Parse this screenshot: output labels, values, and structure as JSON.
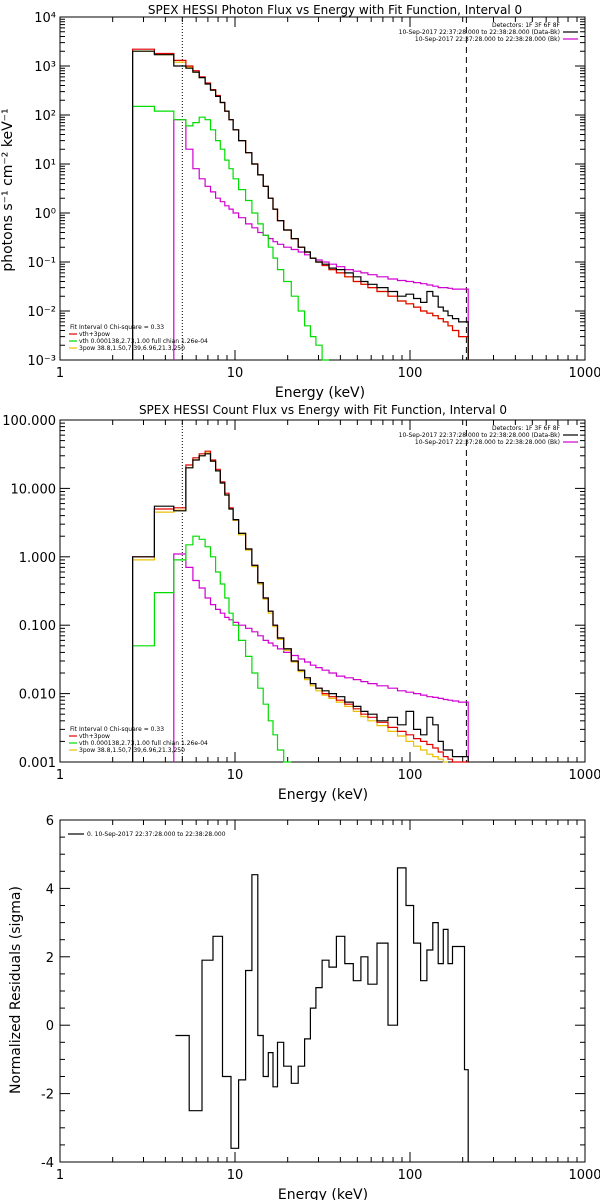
{
  "figure": {
    "panels": [
      {
        "id": "photon",
        "title": "SPEX HESSI Photon Flux vs Energy with Fit Function, Interval 0",
        "xlabel": "Energy (keV)",
        "ylabel": "photons s⁻¹ cm⁻² keV⁻¹",
        "y_ticklabels": [
          "10⁻³",
          "10⁻²",
          "10⁻¹",
          "10⁰",
          "10¹",
          "10²",
          "10³",
          "10⁴"
        ],
        "x_ticklabels": [
          "1",
          "10",
          "100",
          "1000"
        ],
        "legend_topright": [
          "Detectors: 1F 3F 6F 8F",
          "10-Sep-2017 22:37:28.000 to 22:38:28.000 (Data-Bk)",
          "10-Sep-2017 22:37:28.000 to 22:38:28.000 (Bk)"
        ],
        "legend_bottomleft": [
          "Fit Interval 0   Chi-square = 0.33",
          "vth+3pow",
          "vth 0.000138,2.73,1.00  full chian 1.26e-04",
          "3pow 38.8,1.50,7.39,6.96,21.3,250"
        ]
      },
      {
        "id": "count",
        "title": "SPEX HESSI Count Flux vs Energy with Fit Function, Interval 0",
        "xlabel": "Energy (keV)",
        "ylabel": "",
        "y_ticklabels": [
          "0.001",
          "0.010",
          "0.100",
          "1.000",
          "10.000",
          "100.000"
        ],
        "x_ticklabels": [
          "1",
          "10",
          "100",
          "1000"
        ],
        "legend_topright": [
          "Detectors: 1F 3F 6F 8F",
          "10-Sep-2017 22:37:28.000 to 22:38:28.000 (Data-Bk)",
          "10-Sep-2017 22:37:28.000 to 22:38:28.000 (Bk)"
        ],
        "legend_bottomleft": [
          "Fit Interval 0   Chi-square = 0.33",
          "vth+3pow",
          "vth 0.000138,2.73,1.00  full chian 1.26e-04",
          "3pow 38.8,1.50,7.39,6.96,21.3,250"
        ]
      },
      {
        "id": "residuals",
        "title": "",
        "xlabel": "Energy (keV)",
        "ylabel": "Normalized Residuals (sigma)",
        "y_ticklabels": [
          "-4",
          "-2",
          "0",
          "2",
          "4",
          "6"
        ],
        "x_ticklabels": [
          "1",
          "10",
          "100",
          "1000"
        ],
        "legend_topleft": [
          "0. 10-Sep-2017 22:37:28.000 to 22:38:28.000"
        ]
      }
    ]
  },
  "colors": {
    "data": "#000000",
    "total_fit": "#e00000",
    "thermal": "#00dd00",
    "power_law": "#e8c000",
    "background": "#d000d0",
    "axes": "#000000"
  },
  "chart_data": [
    {
      "type": "line",
      "title": "SPEX HESSI Photon Flux vs Energy with Fit Function, Interval 0",
      "xlabel": "Energy (keV)",
      "ylabel": "photons s⁻¹ cm⁻² keV⁻¹",
      "xscale": "log",
      "yscale": "log",
      "xlim": [
        1,
        1000
      ],
      "ylim": [
        0.001,
        10000
      ],
      "vlines": [
        {
          "x": 5,
          "style": "dotted"
        },
        {
          "x": 210,
          "style": "dashed"
        }
      ],
      "x": [
        3,
        4,
        5,
        5.5,
        6,
        6.5,
        7,
        7.5,
        8,
        8.5,
        9,
        9.5,
        10,
        11,
        12,
        13,
        14,
        15,
        16,
        17,
        18,
        20,
        22,
        24,
        26,
        28,
        30,
        33,
        36,
        40,
        45,
        50,
        55,
        60,
        70,
        80,
        90,
        100,
        110,
        120,
        130,
        140,
        150,
        160,
        170,
        180,
        200,
        210
      ],
      "series": [
        {
          "name": "data",
          "values": [
            2000,
            1700,
            1000,
            900,
            750,
            580,
            430,
            320,
            240,
            180,
            120,
            80,
            50,
            30,
            17,
            10,
            6,
            3.5,
            2,
            1.2,
            0.7,
            0.45,
            0.3,
            0.2,
            0.16,
            0.12,
            0.1,
            0.09,
            0.075,
            0.07,
            0.06,
            0.05,
            0.04,
            0.035,
            0.03,
            0.025,
            0.02,
            0.022,
            0.018,
            0.015,
            0.025,
            0.02,
            0.012,
            0.01,
            0.008,
            0.007,
            0.006,
            0.006
          ]
        },
        {
          "name": "vth+3pow",
          "values": [
            2200,
            1800,
            1300,
            1000,
            800,
            600,
            450,
            330,
            250,
            180,
            120,
            80,
            50,
            30,
            17,
            10,
            6,
            3.5,
            2,
            1.2,
            0.7,
            0.45,
            0.3,
            0.2,
            0.16,
            0.12,
            0.1,
            0.085,
            0.07,
            0.06,
            0.05,
            0.04,
            0.035,
            0.03,
            0.025,
            0.02,
            0.016,
            0.014,
            0.012,
            0.01,
            0.009,
            0.008,
            0.007,
            0.006,
            0.005,
            0.004,
            0.003,
            0.003
          ]
        },
        {
          "name": "vth 0.000138,2.73,1.00  full chian 1.26e-04",
          "values": [
            150,
            120,
            80,
            60,
            70,
            90,
            80,
            50,
            30,
            20,
            12,
            8,
            5,
            3,
            1.8,
            1,
            0.6,
            0.35,
            0.2,
            0.12,
            0.07,
            0.04,
            0.02,
            0.01,
            0.005,
            0.003,
            0.002,
            0.001,
            null,
            null,
            null,
            null,
            null,
            null,
            null,
            null,
            null,
            null,
            null,
            null,
            null,
            null,
            null,
            null,
            null,
            null,
            null,
            null
          ]
        },
        {
          "name": "3pow 38.8,1.50,7.39,6.96,21.3,250",
          "values": [
            2000,
            1700,
            1200,
            950,
            750,
            580,
            430,
            320,
            240,
            180,
            120,
            80,
            50,
            30,
            17,
            10,
            6,
            3.5,
            2,
            1.2,
            0.7,
            0.45,
            0.3,
            0.2,
            0.16,
            0.12,
            0.1,
            0.085,
            0.07,
            0.06,
            0.05,
            0.04,
            0.035,
            0.03,
            0.025,
            0.02,
            0.016,
            0.014,
            0.012,
            0.01,
            0.009,
            0.008,
            0.007,
            0.006,
            0.005,
            0.004,
            0.003,
            0.003
          ]
        },
        {
          "name": "background",
          "values": [
            null,
            null,
            80,
            20,
            8,
            5,
            3.5,
            2.7,
            2,
            1.7,
            1.4,
            1.2,
            1,
            0.8,
            0.6,
            0.5,
            0.4,
            0.35,
            0.3,
            0.26,
            0.23,
            0.2,
            0.18,
            0.16,
            0.14,
            0.12,
            0.11,
            0.1,
            0.09,
            0.08,
            0.07,
            0.065,
            0.06,
            0.055,
            0.05,
            0.045,
            0.042,
            0.04,
            0.038,
            0.036,
            0.034,
            0.032,
            0.03,
            0.03,
            0.029,
            0.028,
            0.028,
            0.028
          ]
        }
      ],
      "legend": "top-right"
    },
    {
      "type": "line",
      "title": "SPEX HESSI Count Flux vs Energy with Fit Function, Interval 0",
      "xlabel": "Energy (keV)",
      "ylabel": "",
      "xscale": "log",
      "yscale": "log",
      "xlim": [
        1,
        1000
      ],
      "ylim": [
        0.001,
        100
      ],
      "vlines": [
        {
          "x": 5,
          "style": "dotted"
        },
        {
          "x": 210,
          "style": "dashed"
        }
      ],
      "x": [
        3,
        4,
        5,
        5.5,
        6,
        6.5,
        7,
        7.5,
        8,
        8.5,
        9,
        9.5,
        10,
        11,
        12,
        13,
        14,
        15,
        16,
        17,
        18,
        20,
        22,
        24,
        26,
        28,
        30,
        33,
        36,
        40,
        45,
        50,
        55,
        60,
        70,
        80,
        90,
        100,
        110,
        120,
        130,
        140,
        150,
        160,
        170,
        180,
        200,
        210
      ],
      "series": [
        {
          "name": "data",
          "values": [
            1,
            5.5,
            4.7,
            20,
            26,
            30,
            32,
            25,
            18,
            12,
            8,
            5,
            3.5,
            2.2,
            1.3,
            0.75,
            0.42,
            0.25,
            0.16,
            0.1,
            0.065,
            0.045,
            0.03,
            0.022,
            0.017,
            0.014,
            0.012,
            0.011,
            0.01,
            0.009,
            0.0075,
            0.0065,
            0.0055,
            0.005,
            0.004,
            0.0045,
            0.0035,
            0.0055,
            0.003,
            0.0025,
            0.0045,
            0.0035,
            0.002,
            0.0015,
            0.0015,
            0.0012,
            0.0012,
            0.0012
          ]
        },
        {
          "name": "vth+3pow",
          "values": [
            1,
            5,
            5.2,
            22,
            28,
            32,
            35,
            26,
            19,
            12.5,
            8.5,
            5.2,
            3.5,
            2.2,
            1.3,
            0.75,
            0.42,
            0.25,
            0.16,
            0.1,
            0.065,
            0.045,
            0.03,
            0.022,
            0.017,
            0.014,
            0.012,
            0.01,
            0.009,
            0.008,
            0.007,
            0.006,
            0.005,
            0.0045,
            0.0038,
            0.0032,
            0.0028,
            0.0025,
            0.0022,
            0.002,
            0.0018,
            0.0016,
            0.0014,
            0.0012,
            0.0011,
            0.001,
            0.001,
            0.001
          ]
        },
        {
          "name": "vth 0.000138,2.73,1.00  full chian 1.26e-04",
          "values": [
            0.05,
            0.3,
            0.9,
            1.5,
            2,
            1.8,
            1.4,
            1,
            0.6,
            0.4,
            0.25,
            0.15,
            0.1,
            0.06,
            0.035,
            0.02,
            0.012,
            0.007,
            0.004,
            0.0025,
            0.0015,
            0.001,
            null,
            null,
            null,
            null,
            null,
            null,
            null,
            null,
            null,
            null,
            null,
            null,
            null,
            null,
            null,
            null,
            null,
            null,
            null,
            null,
            null,
            null,
            null,
            null,
            null,
            null
          ]
        },
        {
          "name": "3pow 38.8,1.50,7.39,6.96,21.3,250",
          "values": [
            0.9,
            4.5,
            4.8,
            20,
            26,
            30,
            33,
            25,
            18,
            12,
            8,
            5,
            3.4,
            2.1,
            1.25,
            0.72,
            0.4,
            0.24,
            0.15,
            0.095,
            0.062,
            0.043,
            0.029,
            0.021,
            0.016,
            0.013,
            0.011,
            0.0095,
            0.0085,
            0.0075,
            0.0065,
            0.0055,
            0.0046,
            0.004,
            0.0034,
            0.0028,
            0.0024,
            0.002,
            0.0017,
            0.0015,
            0.0013,
            0.0012,
            0.0011,
            0.001,
            null,
            null,
            null,
            null
          ]
        },
        {
          "name": "background",
          "values": [
            null,
            null,
            1.1,
            0.7,
            0.45,
            0.35,
            0.25,
            0.2,
            0.17,
            0.15,
            0.13,
            0.12,
            0.11,
            0.1,
            0.09,
            0.08,
            0.07,
            0.06,
            0.055,
            0.05,
            0.045,
            0.04,
            0.036,
            0.032,
            0.029,
            0.026,
            0.024,
            0.022,
            0.02,
            0.018,
            0.017,
            0.016,
            0.015,
            0.014,
            0.013,
            0.012,
            0.011,
            0.0105,
            0.01,
            0.0095,
            0.009,
            0.0088,
            0.0085,
            0.0082,
            0.008,
            0.0078,
            0.0075,
            0.0075
          ]
        }
      ],
      "legend": "top-right"
    },
    {
      "type": "line",
      "title": "",
      "xlabel": "Energy (keV)",
      "ylabel": "Normalized Residuals (sigma)",
      "xscale": "log",
      "yscale": "linear",
      "xlim": [
        1,
        1000
      ],
      "ylim": [
        -4,
        6
      ],
      "x": [
        5,
        6,
        7,
        8,
        9,
        10,
        11,
        12,
        13,
        14,
        15,
        16,
        17,
        18,
        20,
        22,
        24,
        26,
        28,
        30,
        33,
        36,
        40,
        45,
        50,
        55,
        60,
        70,
        80,
        90,
        100,
        110,
        120,
        130,
        140,
        150,
        160,
        170,
        180,
        200,
        210
      ],
      "series": [
        {
          "name": "0. 10-Sep-2017 22:37:28.000 to 22:38:28.000",
          "values": [
            -0.3,
            -2.5,
            1.9,
            2.6,
            -1.5,
            -3.6,
            -1.6,
            1.6,
            4.4,
            -0.3,
            -1.5,
            -0.8,
            -1.8,
            -0.5,
            -1.2,
            -1.7,
            -1.2,
            -0.4,
            0.5,
            1.1,
            1.9,
            1.7,
            2.6,
            1.8,
            1.3,
            2.0,
            1.2,
            2.4,
            0,
            4.6,
            3.5,
            2.4,
            1.3,
            2.2,
            3.0,
            1.8,
            2.8,
            1.8,
            2.3,
            2.3,
            -1.3
          ]
        }
      ],
      "legend": "top-left"
    }
  ]
}
